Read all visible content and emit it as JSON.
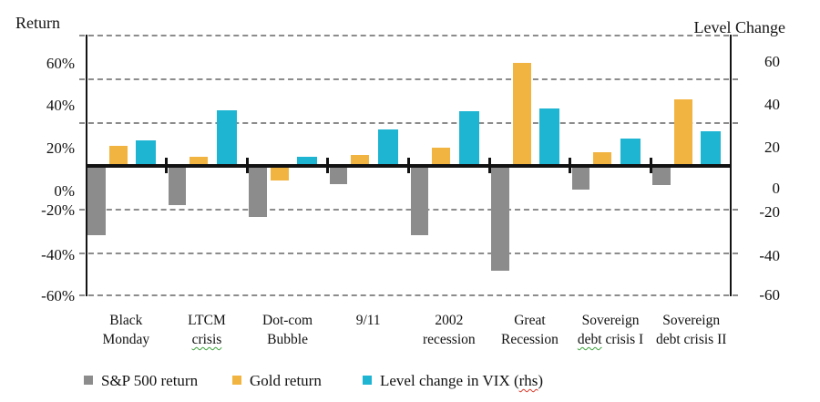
{
  "chart_data": {
    "type": "bar",
    "left_axis_title": "Return",
    "right_axis_title": "Level Change",
    "categories": [
      "Black Monday",
      "LTCM crisis",
      "Dot-com Bubble",
      "9/11",
      "2002 recession",
      "Great Recession",
      "Sovereign debt crisis I",
      "Sovereign debt crisis II"
    ],
    "category_lines": [
      {
        "line1": "Black",
        "line2": "Monday",
        "squiggle_word": ""
      },
      {
        "line1": "LTCM",
        "line2": "crisis",
        "squiggle_word": "crisis"
      },
      {
        "line1": "Dot-com",
        "line2": "Bubble",
        "squiggle_word": ""
      },
      {
        "line1": "9/11",
        "line2": "",
        "squiggle_word": ""
      },
      {
        "line1": "2002",
        "line2": "recession",
        "squiggle_word": ""
      },
      {
        "line1": "Great",
        "line2": "Recession",
        "squiggle_word": ""
      },
      {
        "line1": "Sovereign",
        "line2": "debt crisis I",
        "squiggle_word": "debt"
      },
      {
        "line1": "Sovereign",
        "line2": "debt crisis II",
        "squiggle_word": ""
      }
    ],
    "series": [
      {
        "name": "S&P 500 return",
        "axis": "left",
        "color": "#8c8c8c",
        "values": [
          -32,
          -18,
          -23.5,
          -8.5,
          -32,
          -48.5,
          -11,
          -9
        ]
      },
      {
        "name": "Gold return",
        "axis": "left",
        "color": "#f2b440",
        "values": [
          9,
          4,
          -7,
          5,
          8,
          47,
          6,
          30.5
        ]
      },
      {
        "name": "Level change in VIX (rhs)",
        "axis": "right",
        "color": "#1eb5d3",
        "values": [
          11.5,
          25.5,
          4,
          16.5,
          25,
          26,
          12.5,
          15.5
        ]
      }
    ],
    "left_ticks": [
      "60%",
      "40%",
      "20%",
      "0%",
      "-20%",
      "-40%",
      "-60%"
    ],
    "right_ticks": [
      "60",
      "40",
      "20",
      "0",
      "-20",
      "-40",
      "-60"
    ],
    "ylim": [
      -60,
      60
    ],
    "gridline_values": [
      60,
      40,
      20,
      -20,
      -40,
      -60
    ],
    "grid": "dashed horizontal",
    "legend_position": "bottom",
    "legend": [
      {
        "pre": "S&P 500 return",
        "squiggle": "",
        "post": "",
        "squiggle_color": ""
      },
      {
        "pre": "Gold return",
        "squiggle": "",
        "post": "",
        "squiggle_color": ""
      },
      {
        "pre": "Level change in VIX (",
        "squiggle": "rhs",
        "post": ")",
        "squiggle_color": "red"
      }
    ],
    "colors": {
      "sp500": "#8c8c8c",
      "gold": "#f2b440",
      "vix": "#1eb5d3",
      "axis_line": "#121212",
      "gridline": "#8c8c8c",
      "text": "#151515",
      "squiggle_green": "#3aa23a",
      "squiggle_red": "#d93a2b"
    }
  }
}
